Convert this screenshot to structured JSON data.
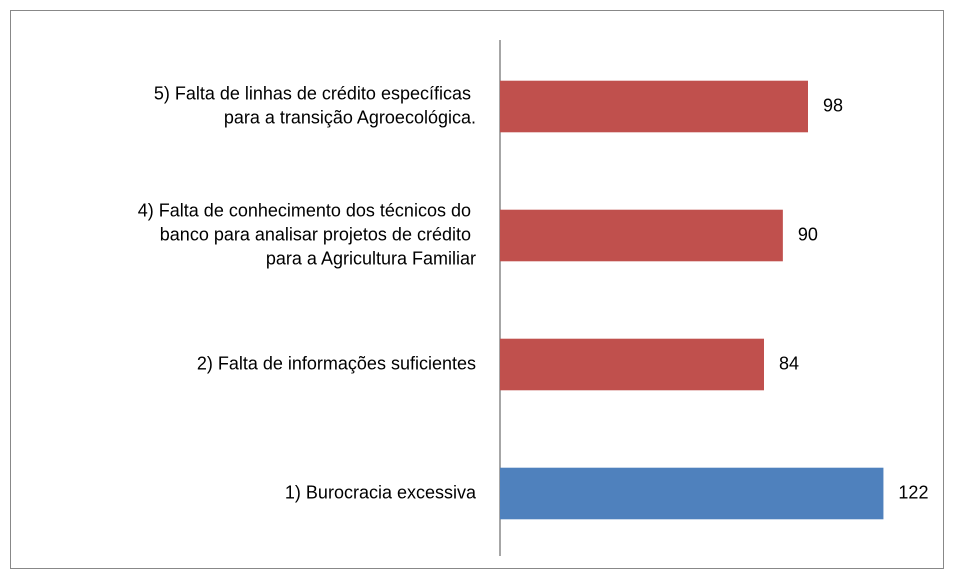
{
  "chart_data": {
    "type": "barh",
    "categories": [
      "5) Falta de linhas de crédito específicas\npara a transição Agroecológica.",
      "4) Falta de conhecimento dos técnicos do\nbanco para analisar projetos de crédito\npara a Agricultura Familiar",
      "2) Falta de informações suficientes",
      "1) Burocracia excessiva"
    ],
    "values": [
      98,
      90,
      84,
      122
    ],
    "colors": [
      "#c0504d",
      "#c0504d",
      "#c0504d",
      "#4f81bd"
    ],
    "xlim": [
      0,
      140
    ]
  }
}
